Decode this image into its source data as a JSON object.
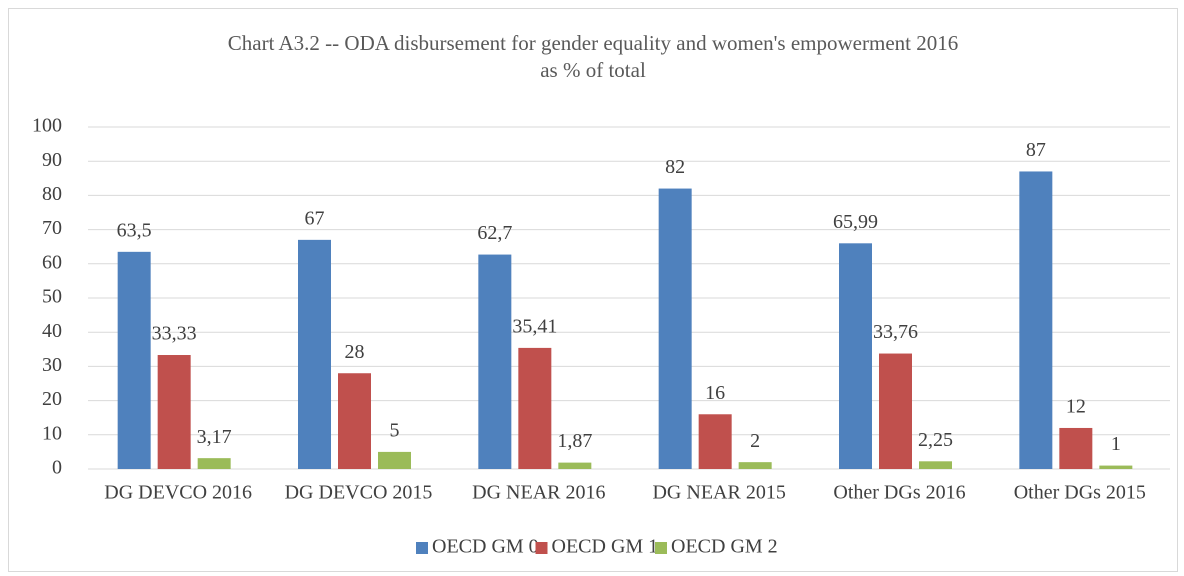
{
  "chart_data": {
    "type": "bar",
    "title": [
      "Chart A3.2 -- ODA disbursement for gender equality and women's empowerment 2016",
      "as % of total"
    ],
    "categories": [
      "DG DEVCO 2016",
      "DG DEVCO 2015",
      "DG NEAR 2016",
      "DG NEAR 2015",
      "Other DGs 2016",
      "Other DGs 2015"
    ],
    "series": [
      {
        "name": "OECD GM 0",
        "color": "#4f81bd",
        "values": [
          63.5,
          67,
          62.7,
          82,
          65.99,
          87
        ],
        "value_labels": [
          "63,5",
          "67",
          "62,7",
          "82",
          "65,99",
          "87"
        ]
      },
      {
        "name": "OECD GM 1",
        "color": "#c0504d",
        "values": [
          33.33,
          28,
          35.41,
          16,
          33.76,
          12
        ],
        "value_labels": [
          "33,33",
          "28",
          "35,41",
          "16",
          "33,76",
          "12"
        ]
      },
      {
        "name": "OECD GM  2",
        "color": "#9bbb59",
        "values": [
          3.17,
          5,
          1.87,
          2,
          2.25,
          1
        ],
        "value_labels": [
          "3,17",
          "5",
          "1,87",
          "2",
          "2,25",
          "1"
        ]
      }
    ],
    "ylim": [
      0,
      100
    ],
    "yticks": [
      0,
      10,
      20,
      30,
      40,
      50,
      60,
      70,
      80,
      90,
      100
    ],
    "grid": true,
    "legend": "bottom"
  }
}
